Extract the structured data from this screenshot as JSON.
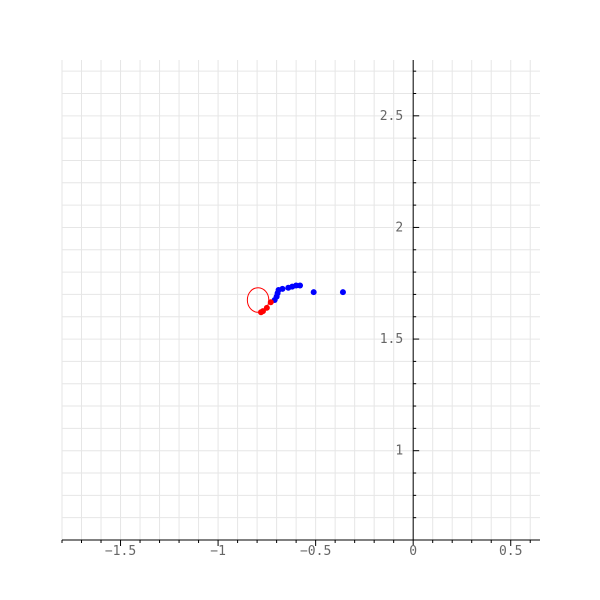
{
  "chart_data": {
    "type": "scatter",
    "xlim": [
      -1.8,
      0.65
    ],
    "ylim": [
      0.6,
      2.75
    ],
    "grid": true,
    "x_ticks": [
      {
        "value": -1.5,
        "label": "−1.5"
      },
      {
        "value": -1,
        "label": "−1"
      },
      {
        "value": -0.5,
        "label": "−0.5"
      },
      {
        "value": 0,
        "label": "0"
      },
      {
        "value": 0.5,
        "label": "0.5"
      }
    ],
    "y_ticks": [
      {
        "value": 1,
        "label": "1"
      },
      {
        "value": 1.5,
        "label": "1.5"
      },
      {
        "value": 2,
        "label": "2"
      },
      {
        "value": 2.5,
        "label": "2.5"
      }
    ],
    "series": [
      {
        "color": "#0000ff",
        "points": [
          [
            -0.36,
            1.71
          ],
          [
            -0.51,
            1.71
          ],
          [
            -0.58,
            1.74
          ],
          [
            -0.6,
            1.74
          ],
          [
            -0.62,
            1.735
          ],
          [
            -0.64,
            1.73
          ],
          [
            -0.67,
            1.725
          ],
          [
            -0.69,
            1.72
          ],
          [
            -0.695,
            1.705
          ],
          [
            -0.7,
            1.69
          ],
          [
            -0.71,
            1.675
          ]
        ]
      },
      {
        "color": "#ff0000",
        "points": [
          [
            -0.73,
            1.665
          ],
          [
            -0.75,
            1.64
          ],
          [
            -0.77,
            1.625
          ],
          [
            -0.78,
            1.62
          ]
        ]
      }
    ],
    "annotations": [
      {
        "type": "circle",
        "cx": -0.795,
        "cy": 1.675,
        "r": 0.055,
        "color": "#ff0000"
      }
    ]
  }
}
